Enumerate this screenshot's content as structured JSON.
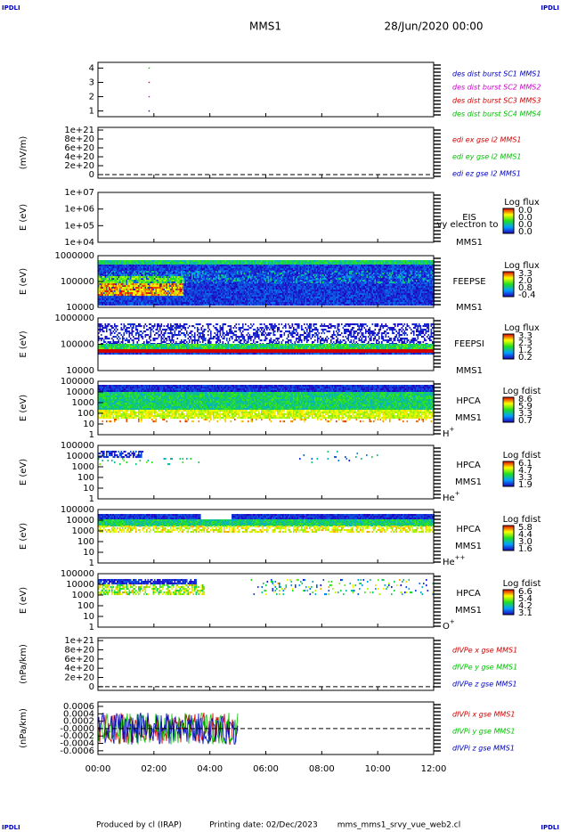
{
  "header": {
    "probe": "MMS1",
    "date": "28/Jun/2020 00:00"
  },
  "footer": {
    "producer": "Produced by cl (IRAP)",
    "printing": "Printing date: 02/Dec/2023",
    "script": "mms_mms1_srvy_vue_web2.cl"
  },
  "corner_marks": [
    "IPDLI",
    "IPDLI",
    "IPDLI",
    "IPDLI"
  ],
  "x_axis": {
    "xlim": [
      0,
      12
    ],
    "xticks": [
      {
        "value": 0,
        "label": "00:00"
      },
      {
        "value": 2,
        "label": "02:00"
      },
      {
        "value": 4,
        "label": "04:00"
      },
      {
        "value": 6,
        "label": "06:00"
      },
      {
        "value": 8,
        "label": "08:00"
      },
      {
        "value": 10,
        "label": "10:00"
      },
      {
        "value": 12,
        "label": "12:00"
      }
    ]
  },
  "chart_data": [
    {
      "type": "scatter",
      "ylim": [
        0.6,
        4.4
      ],
      "yticks": [
        1,
        2,
        3,
        4
      ],
      "series": [
        {
          "name": "des dist burst SC1 MMS1",
          "color": "#0000c0",
          "x": [
            1.83
          ],
          "values": [
            1
          ]
        },
        {
          "name": "des dist burst SC2 MMS2",
          "color": "#d000d0",
          "x": [
            1.83
          ],
          "values": [
            2
          ]
        },
        {
          "name": "des dist burst SC3 MMS3",
          "color": "#d00000",
          "x": [
            1.83
          ],
          "values": [
            3
          ]
        },
        {
          "name": "des dist burst SC4 MMS4",
          "color": "#00c000",
          "x": [
            1.83
          ],
          "values": [
            4
          ]
        }
      ]
    },
    {
      "type": "line",
      "ylabel": "(mV/m)",
      "ylim": [
        -8e+19,
        1.06e+21
      ],
      "zero_line": 0,
      "yticks": [
        {
          "value": 0,
          "label": "0"
        },
        {
          "value": 2e+20,
          "label": "2e+20"
        },
        {
          "value": 4e+20,
          "label": "4e+20"
        },
        {
          "value": 6e+20,
          "label": "6e+20"
        },
        {
          "value": 8e+20,
          "label": "8e+20"
        },
        {
          "value": 1e+21,
          "label": "1e+21"
        }
      ],
      "series": [
        {
          "name": "edi ex gse l2 MMS1",
          "color": "#d00000",
          "values": []
        },
        {
          "name": "edi ey gse l2 MMS1",
          "color": "#00c000",
          "values": []
        },
        {
          "name": "edi ez gse l2 MMS1",
          "color": "#0000c0",
          "values": []
        }
      ]
    },
    {
      "type": "heatmap",
      "ylabel": "E (eV)",
      "log_scale": true,
      "ylim": [
        10000,
        10000000
      ],
      "yticks": [
        {
          "value": 10000000,
          "label": "1e+07"
        },
        {
          "value": 1000000,
          "label": "1e+06"
        },
        {
          "value": 100000,
          "label": "1e+05"
        },
        {
          "value": 10000,
          "label": "1e+04"
        }
      ],
      "labels": [
        "EIS",
        "vy electron to",
        "MMS1"
      ],
      "colorbar": {
        "title": "Log flux",
        "ticks": [
          "0.0",
          "0.0",
          "0.0",
          "0.0"
        ]
      }
    },
    {
      "type": "heatmap",
      "ylabel": "E (eV)",
      "log_scale": true,
      "ylim": [
        10000,
        1000000
      ],
      "yticks": [
        1000000,
        100000,
        10000
      ],
      "labels": [
        "FEEPSE",
        "MMS1"
      ],
      "colorbar": {
        "title": "Log flux",
        "ticks": [
          "3.3",
          "2.0",
          "0.8",
          "-0.4"
        ]
      }
    },
    {
      "type": "heatmap",
      "ylabel": "E (eV)",
      "log_scale": true,
      "ylim": [
        10000,
        1000000
      ],
      "yticks": [
        1000000,
        100000,
        10000
      ],
      "labels": [
        "FEEPSI",
        "MMS1"
      ],
      "colorbar": {
        "title": "Log flux",
        "ticks": [
          "3.3",
          "2.3",
          "1.2",
          "0.2"
        ]
      }
    },
    {
      "type": "heatmap",
      "ylabel": "E (eV)",
      "log_scale": true,
      "ylim": [
        1,
        100000
      ],
      "yticks": [
        100000,
        10000,
        1000,
        100,
        10,
        1
      ],
      "labels": [
        "HPCA",
        "MMS1"
      ],
      "species": "H",
      "charge": "+",
      "colorbar": {
        "title": "Log fdist",
        "ticks": [
          "8.6",
          "5.9",
          "3.3",
          "0.7"
        ]
      }
    },
    {
      "type": "heatmap",
      "ylabel": "E (eV)",
      "log_scale": true,
      "ylim": [
        1,
        100000
      ],
      "yticks": [
        100000,
        10000,
        1000,
        100,
        10,
        1
      ],
      "labels": [
        "HPCA",
        "MMS1"
      ],
      "species": "He",
      "charge": "+",
      "colorbar": {
        "title": "Log fdist",
        "ticks": [
          "6.1",
          "4.7",
          "3.3",
          "1.9"
        ]
      }
    },
    {
      "type": "heatmap",
      "ylabel": "E (eV)",
      "log_scale": true,
      "ylim": [
        1,
        100000
      ],
      "yticks": [
        100000,
        10000,
        1000,
        100,
        10,
        1
      ],
      "labels": [
        "HPCA",
        "MMS1"
      ],
      "species": "He",
      "charge": "++",
      "colorbar": {
        "title": "Log fdist",
        "ticks": [
          "5.8",
          "4.4",
          "3.0",
          "1.6"
        ]
      }
    },
    {
      "type": "heatmap",
      "ylabel": "E (eV)",
      "log_scale": true,
      "ylim": [
        1,
        100000
      ],
      "yticks": [
        100000,
        10000,
        1000,
        100,
        10,
        1
      ],
      "labels": [
        "HPCA",
        "MMS1"
      ],
      "species": "O",
      "charge": "+",
      "colorbar": {
        "title": "Log fdist",
        "ticks": [
          "6.6",
          "5.4",
          "4.2",
          "3.1"
        ]
      }
    },
    {
      "type": "line",
      "ylabel": "(nPa/km)",
      "ylim": [
        -8e+19,
        1.06e+21
      ],
      "zero_line": 0,
      "yticks": [
        {
          "value": 0,
          "label": "0"
        },
        {
          "value": 2e+20,
          "label": "2e+20"
        },
        {
          "value": 4e+20,
          "label": "4e+20"
        },
        {
          "value": 6e+20,
          "label": "6e+20"
        },
        {
          "value": 8e+20,
          "label": "8e+20"
        },
        {
          "value": 1e+21,
          "label": "1e+21"
        }
      ],
      "series": [
        {
          "name": "dIVPe x gse MMS1",
          "color": "#d00000",
          "values": []
        },
        {
          "name": "dIVPe y gse MMS1",
          "color": "#00c000",
          "values": []
        },
        {
          "name": "dIVPe z gse MMS1",
          "color": "#0000c0",
          "values": []
        }
      ]
    },
    {
      "type": "line",
      "ylabel": "(nPa/km)",
      "ylim": [
        -0.0007,
        0.00072
      ],
      "zero_line": 0,
      "yticks": [
        {
          "value": 0.0006,
          "label": "0.0006"
        },
        {
          "value": 0.0004,
          "label": "0.0004"
        },
        {
          "value": 0.0002,
          "label": "0.0002"
        },
        {
          "value": 0,
          "label": "-0.0000"
        },
        {
          "value": -0.0002,
          "label": "-0.0002"
        },
        {
          "value": -0.0004,
          "label": "-0.0004"
        },
        {
          "value": -0.0006,
          "label": "-0.0006"
        }
      ],
      "series": [
        {
          "name": "dIVPi x gse MMS1",
          "color": "#d00000",
          "values": []
        },
        {
          "name": "dIVPi y gse MMS1",
          "color": "#00c000",
          "values": []
        },
        {
          "name": "dIVPi z gse MMS1",
          "color": "#0000c0",
          "values": []
        }
      ]
    }
  ]
}
